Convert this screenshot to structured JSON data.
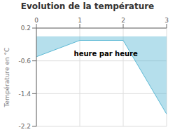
{
  "chart_data": {
    "type": "area",
    "title": "Evolution de la température",
    "ylabel": "Température en °C",
    "x": [
      0,
      1,
      2,
      3
    ],
    "values": [
      -0.5,
      -0.1,
      -0.1,
      -1.9
    ],
    "color": "#5bb8d4",
    "xlim": [
      0,
      3
    ],
    "ylim": [
      -2.2,
      0.2
    ],
    "xticks": [
      0,
      1,
      2,
      3
    ],
    "yticks": [
      0.2,
      -0.6,
      -1.4,
      -2.2
    ],
    "grid": true,
    "annotations": [
      {
        "text": "heure par heure",
        "x": 1.6,
        "y": -0.42
      }
    ]
  }
}
